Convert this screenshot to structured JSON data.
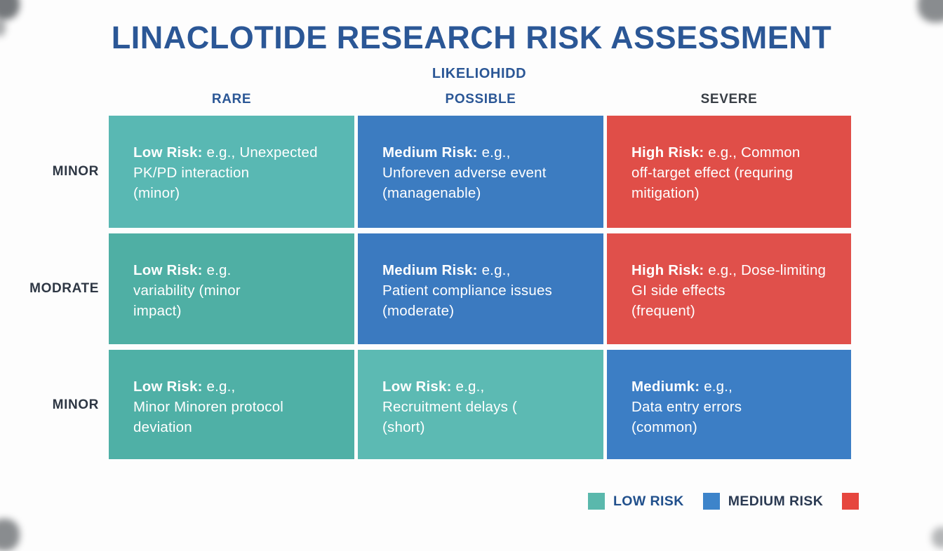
{
  "title": "LINACLOTIDE RESEARCH RISK ASSESSMENT",
  "axis": {
    "likelihood_label": "LIKELIOHIDD",
    "columns": [
      {
        "label": "RARE",
        "color": "#2b5796"
      },
      {
        "label": "POSSIBLE",
        "color": "#2b5796"
      },
      {
        "label": "SEVERE",
        "color": "#383e45"
      }
    ],
    "rows": [
      {
        "label": "MINOR"
      },
      {
        "label": "MODRATE"
      },
      {
        "label": "MINOR"
      }
    ]
  },
  "matrix": {
    "cells": [
      {
        "row": 1,
        "col": 1,
        "risk_label": "Low Risk:",
        "text_lines": [
          "e.g., Unexpected",
          "PK/PD interaction",
          "(minor)"
        ],
        "color": "#59b8b3"
      },
      {
        "row": 1,
        "col": 2,
        "risk_label": "Medium Risk:",
        "text_lines": [
          "e.g.,",
          "Unforeven adverse event",
          "(managenable)"
        ],
        "color": "#3c7cc1"
      },
      {
        "row": 1,
        "col": 3,
        "risk_label": "High Risk:",
        "text_lines": [
          "e.g., Common",
          "off-target effect (requring",
          "mitigation)"
        ],
        "color": "#e04e48"
      },
      {
        "row": 2,
        "col": 1,
        "risk_label": "Low Risk:",
        "text_lines": [
          "e.g.",
          "variability (minor",
          "impact)"
        ],
        "color": "#4fafa4"
      },
      {
        "row": 2,
        "col": 2,
        "risk_label": "Medium Risk:",
        "text_lines": [
          "e.g.,",
          "Patient compliance issues",
          "(moderate)"
        ],
        "color": "#3b7ac0"
      },
      {
        "row": 2,
        "col": 3,
        "risk_label": "High Risk:",
        "text_lines": [
          "e.g., Dose-limiting",
          "GI side effects",
          "(frequent)"
        ],
        "color": "#e0504b"
      },
      {
        "row": 3,
        "col": 1,
        "risk_label": "Low Risk:",
        "text_lines": [
          "e.g.,",
          "Minor Minoren protocol",
          "deviation"
        ],
        "color": "#4fb0a6"
      },
      {
        "row": 3,
        "col": 2,
        "risk_label": "Low Risk:",
        "text_lines": [
          "e.g.,",
          "Recruitment delays (",
          "(short)"
        ],
        "color": "#5cbab3"
      },
      {
        "row": 3,
        "col": 3,
        "risk_label": "Mediumk:",
        "text_lines": [
          "e.g.,",
          "Data entry errors",
          "(common)"
        ],
        "color": "#3c7ec5"
      }
    ]
  },
  "legend": {
    "items": [
      {
        "label": "LOW RISK",
        "color": "#5ab8ac",
        "text_color": "#21508c"
      },
      {
        "label": "MEDIUM RISK",
        "color": "#3d84ca",
        "text_color": "#2b3a52"
      },
      {
        "label": "",
        "color": "#e6463e",
        "text_color": "#2b3a52"
      }
    ]
  }
}
